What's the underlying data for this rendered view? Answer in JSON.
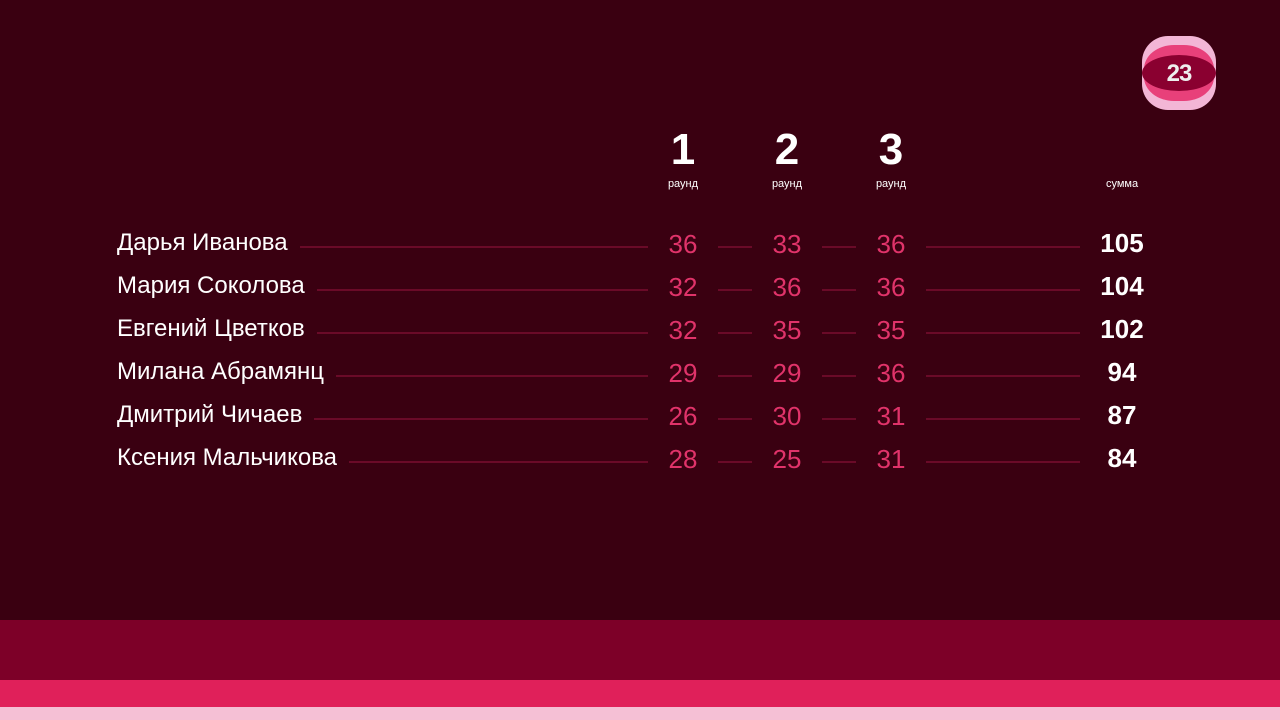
{
  "logo": {
    "text": "23"
  },
  "columns": [
    {
      "number": "1",
      "label": "раунд"
    },
    {
      "number": "2",
      "label": "раунд"
    },
    {
      "number": "3",
      "label": "раунд"
    }
  ],
  "sum_label": "сумма",
  "rows": [
    {
      "name": "Дарья Иванова",
      "scores": [
        "36",
        "33",
        "36"
      ],
      "sum": "105"
    },
    {
      "name": "Мария Соколова",
      "scores": [
        "32",
        "36",
        "36"
      ],
      "sum": "104"
    },
    {
      "name": "Евгений Цветков",
      "scores": [
        "32",
        "35",
        "35"
      ],
      "sum": "102"
    },
    {
      "name": "Милана Абрамянц",
      "scores": [
        "29",
        "29",
        "36"
      ],
      "sum": "94"
    },
    {
      "name": "Дмитрий Чичаев",
      "scores": [
        "26",
        "30",
        "31"
      ],
      "sum": "87"
    },
    {
      "name": "Ксения Мальчикова",
      "scores": [
        "28",
        "25",
        "31"
      ],
      "sum": "84"
    }
  ],
  "colors": {
    "background": "#3a0011",
    "score": "#e0336a",
    "band1": "#7d0028",
    "band2": "#e0205a",
    "band3": "#f5c0d5"
  }
}
